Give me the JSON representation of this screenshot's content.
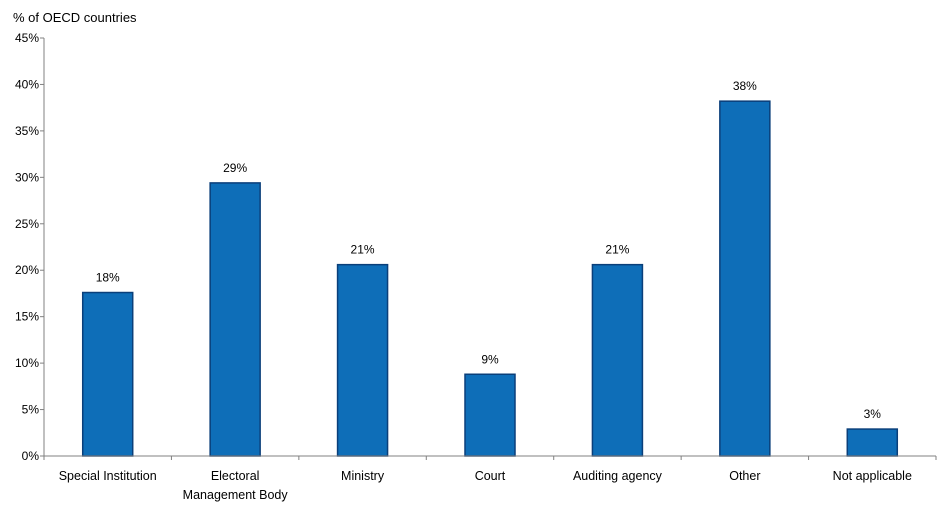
{
  "chart_data": {
    "type": "bar",
    "ylabel": "% of OECD countries",
    "categories": [
      "Special Institution",
      "Electoral Management Body",
      "Ministry",
      "Court",
      "Auditing agency",
      "Other",
      "Not applicable"
    ],
    "category_lines": [
      [
        "Special Institution"
      ],
      [
        "Electoral",
        "Management Body"
      ],
      [
        "Ministry"
      ],
      [
        "Court"
      ],
      [
        "Auditing agency"
      ],
      [
        "Other"
      ],
      [
        "Not applicable"
      ]
    ],
    "values": [
      17.6,
      29.4,
      20.6,
      8.8,
      20.6,
      38.2,
      2.9
    ],
    "data_labels": [
      "18%",
      "29%",
      "21%",
      "9%",
      "21%",
      "38%",
      "3%"
    ],
    "y_ticks": [
      0,
      5,
      10,
      15,
      20,
      25,
      30,
      35,
      40,
      45
    ],
    "y_tick_labels": [
      "0%",
      "5%",
      "10%",
      "15%",
      "20%",
      "25%",
      "30%",
      "35%",
      "40%",
      "45%"
    ],
    "ylim": [
      0,
      45
    ],
    "grid": false,
    "legend": "none",
    "colors": {
      "bar_fill": "#0E6EB8",
      "bar_stroke": "#0A3F7A",
      "axis": "#808080"
    }
  }
}
